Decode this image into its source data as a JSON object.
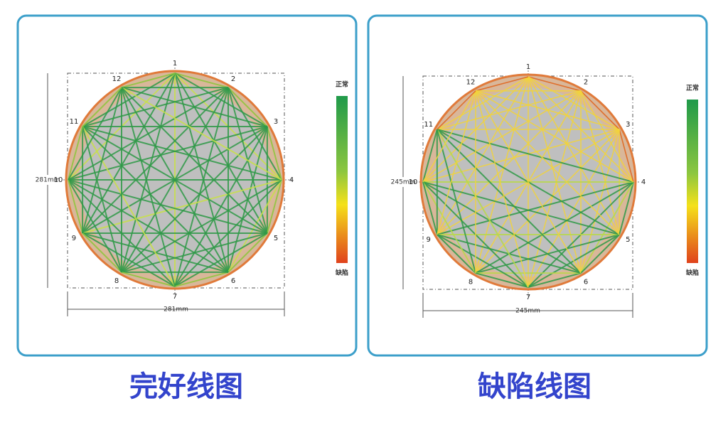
{
  "panels": [
    {
      "caption": "完好线图",
      "width_label": "281mm",
      "height_label": "281mm",
      "legend": {
        "top": "正常",
        "bottom": "缺陷"
      },
      "nodes": [
        "1",
        "2",
        "3",
        "4",
        "5",
        "6",
        "7",
        "8",
        "9",
        "10",
        "11",
        "12"
      ]
    },
    {
      "caption": "缺陷线图",
      "width_label": "245mm",
      "height_label": "245mm",
      "legend": {
        "top": "正常",
        "bottom": "缺陷"
      },
      "nodes": [
        "1",
        "2",
        "3",
        "4",
        "5",
        "6",
        "7",
        "8",
        "9",
        "10",
        "11",
        "12"
      ]
    }
  ]
}
